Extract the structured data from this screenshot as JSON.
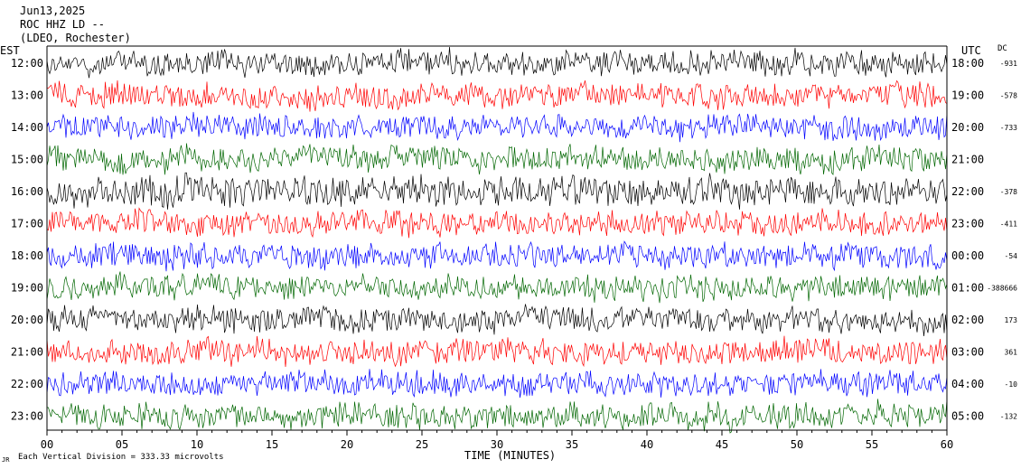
{
  "header": {
    "date": "Jun13,2025",
    "station": "ROC HHZ LD --",
    "network": "(LDEO, Rochester)"
  },
  "left_axis_label": "EST",
  "right_axis_label": "UTC",
  "dc_label": "DC",
  "footer": {
    "scale_note": "Each Vertical Division = 333.33 microvolts",
    "corner_mark": "JR"
  },
  "colors": {
    "black": "#000000",
    "red": "#ff0000",
    "blue": "#0000ff",
    "green": "#006600",
    "frame": "#000000"
  },
  "chart_data": {
    "type": "line",
    "title": "ROC HHZ LD --",
    "xlabel": "TIME (MINUTES)",
    "xlim": [
      0,
      60
    ],
    "x_ticks": [
      "00",
      "05",
      "10",
      "15",
      "20",
      "25",
      "30",
      "35",
      "40",
      "45",
      "50",
      "55",
      "60"
    ],
    "series": [
      {
        "est": "12:00",
        "utc": "18:00",
        "dc": "-931",
        "color": "black"
      },
      {
        "est": "13:00",
        "utc": "19:00",
        "dc": "-578",
        "color": "red"
      },
      {
        "est": "14:00",
        "utc": "20:00",
        "dc": "-733",
        "color": "blue"
      },
      {
        "est": "15:00",
        "utc": "21:00",
        "dc": "",
        "color": "green"
      },
      {
        "est": "16:00",
        "utc": "22:00",
        "dc": "-378",
        "color": "black"
      },
      {
        "est": "17:00",
        "utc": "23:00",
        "dc": "-411",
        "color": "red"
      },
      {
        "est": "18:00",
        "utc": "00:00",
        "dc": "-54",
        "color": "blue"
      },
      {
        "est": "19:00",
        "utc": "01:00",
        "dc": "-388666",
        "color": "green"
      },
      {
        "est": "20:00",
        "utc": "02:00",
        "dc": "173",
        "color": "black"
      },
      {
        "est": "21:00",
        "utc": "03:00",
        "dc": "361",
        "color": "red"
      },
      {
        "est": "22:00",
        "utc": "04:00",
        "dc": "-10",
        "color": "blue"
      },
      {
        "est": "23:00",
        "utc": "05:00",
        "dc": "-132",
        "color": "green"
      }
    ]
  }
}
